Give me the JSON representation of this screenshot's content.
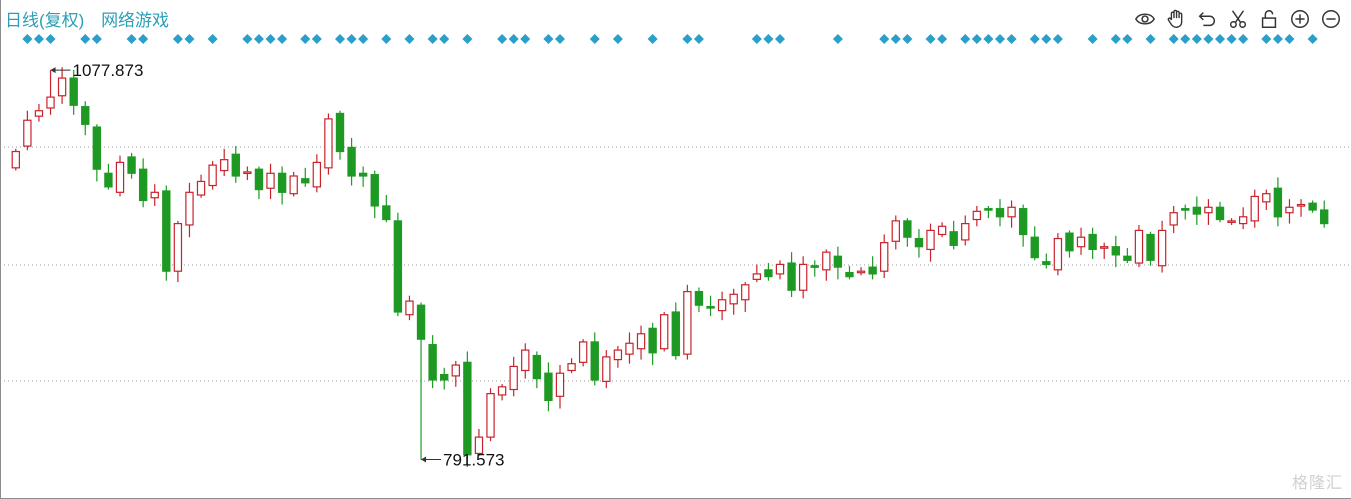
{
  "header": {
    "period_label": "日线(复权)",
    "security_name": "网络游戏"
  },
  "toolbar": [
    {
      "name": "eye-icon"
    },
    {
      "name": "hand-icon"
    },
    {
      "name": "undo-icon"
    },
    {
      "name": "scissors-icon"
    },
    {
      "name": "lock-icon"
    },
    {
      "name": "zoom-in-icon"
    },
    {
      "name": "zoom-out-icon"
    }
  ],
  "watermark": "格隆汇",
  "colors": {
    "up": "#c8232c",
    "down": "#1e9a24",
    "marker": "#2a9fc9",
    "title": "#2a9fb7"
  },
  "chart_data": {
    "type": "candlestick",
    "ylim": [
      775,
      1100
    ],
    "grid": "horizontal-dotted",
    "annotations": [
      {
        "label": "1077.873",
        "index": 3,
        "kind": "max"
      },
      {
        "label": "791.573",
        "index": 35,
        "kind": "min"
      }
    ],
    "markers": [
      1,
      2,
      3,
      6,
      7,
      10,
      11,
      14,
      15,
      17,
      20,
      21,
      22,
      23,
      25,
      26,
      28,
      29,
      30,
      32,
      34,
      36,
      37,
      39,
      42,
      43,
      44,
      46,
      47,
      50,
      52,
      55,
      58,
      59,
      64,
      65,
      66,
      71,
      75,
      76,
      77,
      79,
      80,
      82,
      83,
      84,
      85,
      86,
      88,
      89,
      90,
      93,
      95,
      96,
      98,
      100,
      101,
      102,
      103,
      104,
      105,
      106,
      108,
      109,
      110,
      112
    ]
  }
}
